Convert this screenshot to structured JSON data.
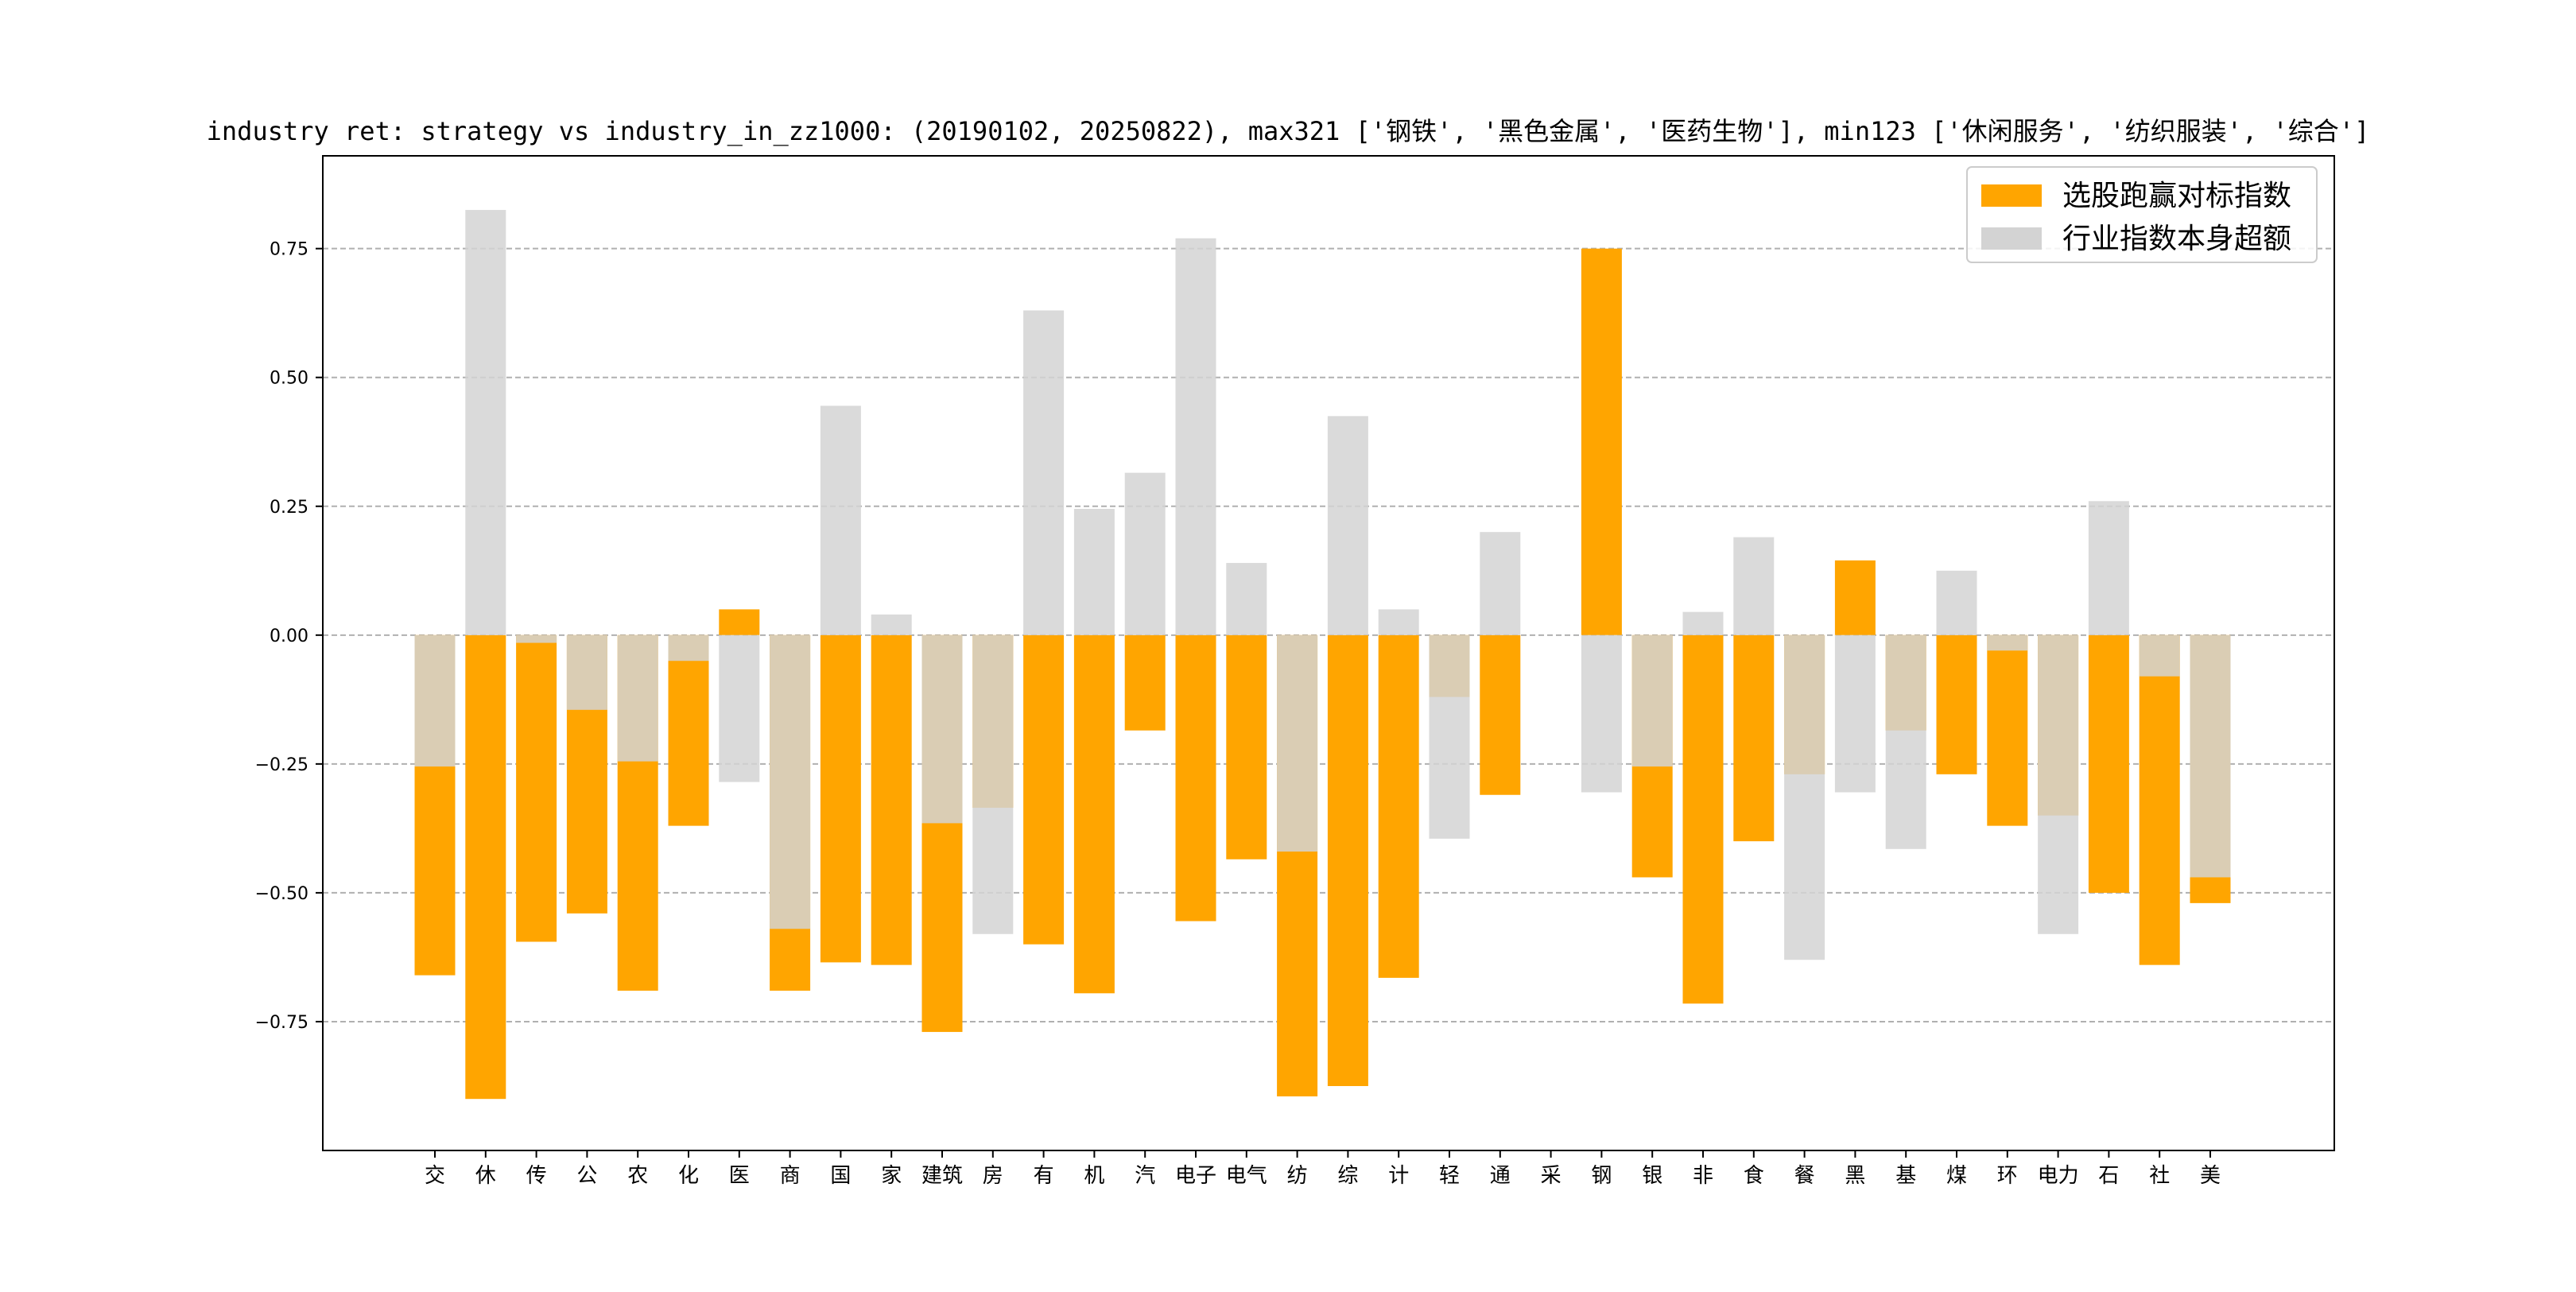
{
  "chart_data": {
    "type": "bar",
    "title": "industry ret: strategy vs industry_in_zz1000: (20190102, 20250822), max321 ['钢铁', '黑色金属', '医药生物'], min123 ['休闲服务', '纺织服装', '综合']",
    "xlabel": "",
    "ylabel": "",
    "ylim": [
      -1.0,
      0.93
    ],
    "yticks": [
      -0.75,
      -0.5,
      -0.25,
      0.0,
      0.25,
      0.5,
      0.75
    ],
    "ytick_labels": [
      "−0.75",
      "−0.50",
      "−0.25",
      "0.00",
      "0.25",
      "0.50",
      "0.75"
    ],
    "grid": "y-dashed",
    "legend_position": "top-right",
    "categories": [
      "交",
      "休",
      "传",
      "公",
      "农",
      "化",
      "医",
      "商",
      "国",
      "家",
      "建筑",
      "房",
      "有",
      "机",
      "汽",
      "电子",
      "电气",
      "纺",
      "综",
      "计",
      "轻",
      "通",
      "采",
      "钢",
      "银",
      "非",
      "食",
      "餐",
      "黑",
      "基",
      "煤",
      "环",
      "电力",
      "石",
      "社",
      "美"
    ],
    "series": [
      {
        "name": "选股跑赢对标指数",
        "color": "#FFA500",
        "values": [
          -0.66,
          -0.9,
          -0.595,
          -0.54,
          -0.69,
          -0.37,
          0.05,
          -0.69,
          -0.635,
          -0.64,
          -0.77,
          -0.335,
          -0.6,
          -0.695,
          -0.185,
          -0.555,
          -0.435,
          -0.895,
          -0.875,
          -0.665,
          -0.12,
          -0.31,
          0.0,
          0.75,
          -0.47,
          -0.715,
          -0.4,
          -0.27,
          0.145,
          -0.185,
          -0.27,
          -0.37,
          -0.35,
          -0.5,
          -0.64,
          -0.52
        ]
      },
      {
        "name": "行业指数本身超额",
        "color": "#D3D3D3",
        "values": [
          -0.255,
          0.825,
          -0.015,
          -0.145,
          -0.245,
          -0.05,
          -0.285,
          -0.57,
          0.445,
          0.04,
          -0.365,
          -0.58,
          0.63,
          0.245,
          0.315,
          0.77,
          0.14,
          -0.42,
          0.425,
          0.05,
          -0.395,
          0.2,
          0.0,
          -0.305,
          -0.255,
          0.045,
          0.19,
          -0.63,
          -0.305,
          -0.415,
          0.125,
          -0.03,
          -0.58,
          0.26,
          -0.08,
          -0.47
        ]
      }
    ]
  }
}
